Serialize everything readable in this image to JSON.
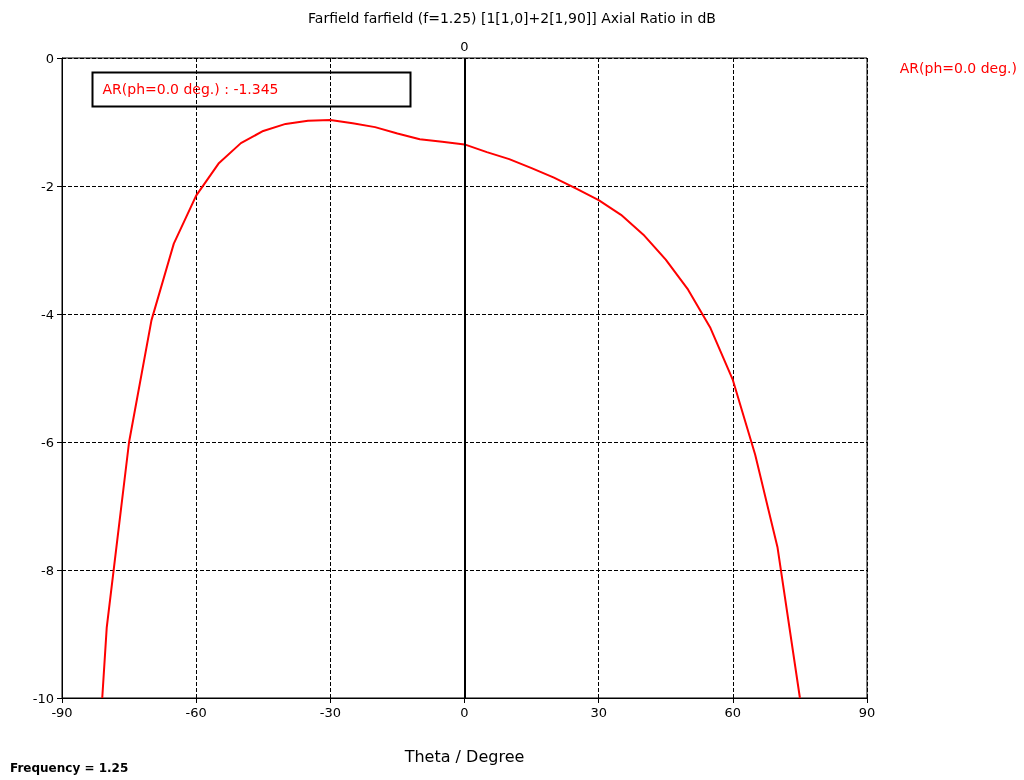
{
  "chart_data": {
    "type": "line",
    "title": "Farfield farfield (f=1.25) [1[1,0]+2[1,90]] Axial Ratio in dB",
    "xlabel": "Theta / Degree",
    "annotations": [
      "AR(ph=0.0 deg.) : -1.345",
      "Frequency = 1.25"
    ],
    "x": [
      -81,
      -80,
      -75,
      -70,
      -65,
      -60,
      -55,
      -50,
      -45,
      -40,
      -35,
      -30,
      -25,
      -20,
      -15,
      -10,
      -5,
      0,
      5,
      10,
      15,
      20,
      25,
      30,
      35,
      40,
      45,
      50,
      55,
      60,
      65,
      70,
      75
    ],
    "series": [
      {
        "name": "AR(ph=0.0 deg.)",
        "color": "#ff0000",
        "values": [
          -10,
          -8.9,
          -6.0,
          -4.1,
          -2.9,
          -2.15,
          -1.65,
          -1.33,
          -1.14,
          -1.03,
          -0.98,
          -0.97,
          -1.02,
          -1.08,
          -1.18,
          -1.27,
          -1.31,
          -1.35,
          -1.47,
          -1.58,
          -1.72,
          -1.87,
          -2.04,
          -2.22,
          -2.45,
          -2.76,
          -3.15,
          -3.62,
          -4.22,
          -5.03,
          -6.2,
          -7.65,
          -10
        ]
      }
    ],
    "xlim": [
      -90,
      90
    ],
    "xticks": [
      -90,
      -60,
      -30,
      0,
      30,
      60,
      90
    ],
    "ylim": [
      -10,
      0
    ],
    "yticks": [
      -10,
      -8,
      -6,
      -4,
      -2,
      0
    ],
    "ref_lines": [
      {
        "axis": "x",
        "value": 0,
        "label": "0",
        "color": "#000000",
        "line_style": "solid"
      }
    ],
    "grid": true,
    "legend": "top right",
    "marker": "none",
    "line_style": "solid"
  }
}
